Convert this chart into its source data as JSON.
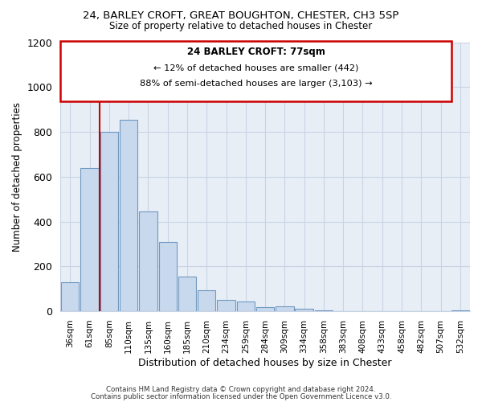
{
  "title": "24, BARLEY CROFT, GREAT BOUGHTON, CHESTER, CH3 5SP",
  "subtitle": "Size of property relative to detached houses in Chester",
  "xlabel": "Distribution of detached houses by size in Chester",
  "ylabel": "Number of detached properties",
  "bar_labels": [
    "36sqm",
    "61sqm",
    "85sqm",
    "110sqm",
    "135sqm",
    "160sqm",
    "185sqm",
    "210sqm",
    "234sqm",
    "259sqm",
    "284sqm",
    "309sqm",
    "334sqm",
    "358sqm",
    "383sqm",
    "408sqm",
    "433sqm",
    "458sqm",
    "482sqm",
    "507sqm",
    "532sqm"
  ],
  "bar_values": [
    130,
    640,
    800,
    855,
    445,
    310,
    155,
    93,
    52,
    43,
    18,
    22,
    12,
    5,
    2,
    1,
    0,
    0,
    0,
    0,
    3
  ],
  "bar_color": "#c8d8ed",
  "bar_edge_color": "#7099c0",
  "vline_color": "#cc0000",
  "ylim": [
    0,
    1200
  ],
  "yticks": [
    0,
    200,
    400,
    600,
    800,
    1000,
    1200
  ],
  "annotation_title": "24 BARLEY CROFT: 77sqm",
  "annotation_line1": "← 12% of detached houses are smaller (442)",
  "annotation_line2": "88% of semi-detached houses are larger (3,103) →",
  "annotation_box_color": "#ffffff",
  "annotation_box_edge": "#cc0000",
  "footer_line1": "Contains HM Land Registry data © Crown copyright and database right 2024.",
  "footer_line2": "Contains public sector information licensed under the Open Government Licence v3.0.",
  "background_color": "#ffffff",
  "grid_color": "#c8d4e4"
}
